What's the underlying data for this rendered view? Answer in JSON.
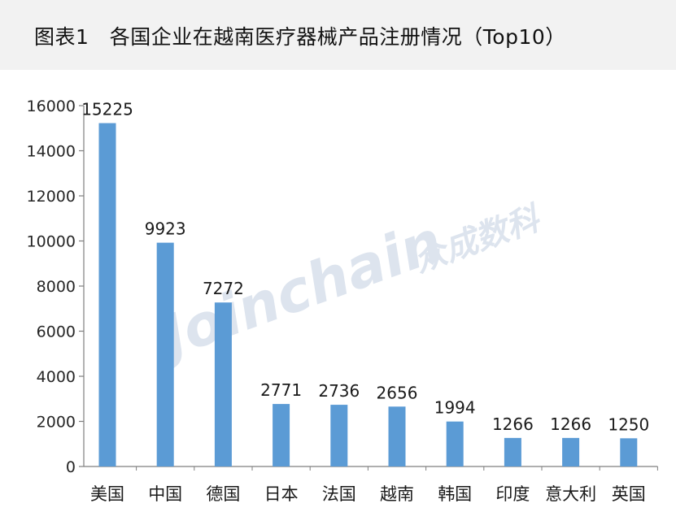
{
  "header": {
    "figure_label": "图表1",
    "title": "各国企业在越南医疗器械产品注册情况（Top10）"
  },
  "watermark": {
    "text": "Joinchain",
    "cn_text": "众成数科",
    "color": "#dde4ee"
  },
  "chart_data": {
    "type": "bar",
    "title": "各国企业在越南医疗器械产品注册情况（Top10）",
    "categories": [
      "美国",
      "中国",
      "德国",
      "日本",
      "法国",
      "越南",
      "韩国",
      "印度",
      "意大利",
      "英国"
    ],
    "values": [
      15225,
      9923,
      7272,
      2771,
      2736,
      2656,
      1994,
      1266,
      1266,
      1250
    ],
    "data_labels": [
      "15225",
      "9923",
      "7272",
      "2771",
      "2736",
      "2656",
      "1994",
      "1266",
      "1266",
      "1250"
    ],
    "y_ticks": [
      0,
      2000,
      4000,
      6000,
      8000,
      10000,
      12000,
      14000,
      16000
    ],
    "y_tick_labels": [
      "0",
      "2000",
      "4000",
      "6000",
      "8000",
      "10000",
      "12000",
      "14000",
      "16000"
    ],
    "xlabel": "",
    "ylabel": "",
    "ylim": [
      0,
      16000
    ],
    "grid": false,
    "legend": "none",
    "bar_color": "#5b9bd5",
    "axis_color": "#7f7f7f"
  }
}
